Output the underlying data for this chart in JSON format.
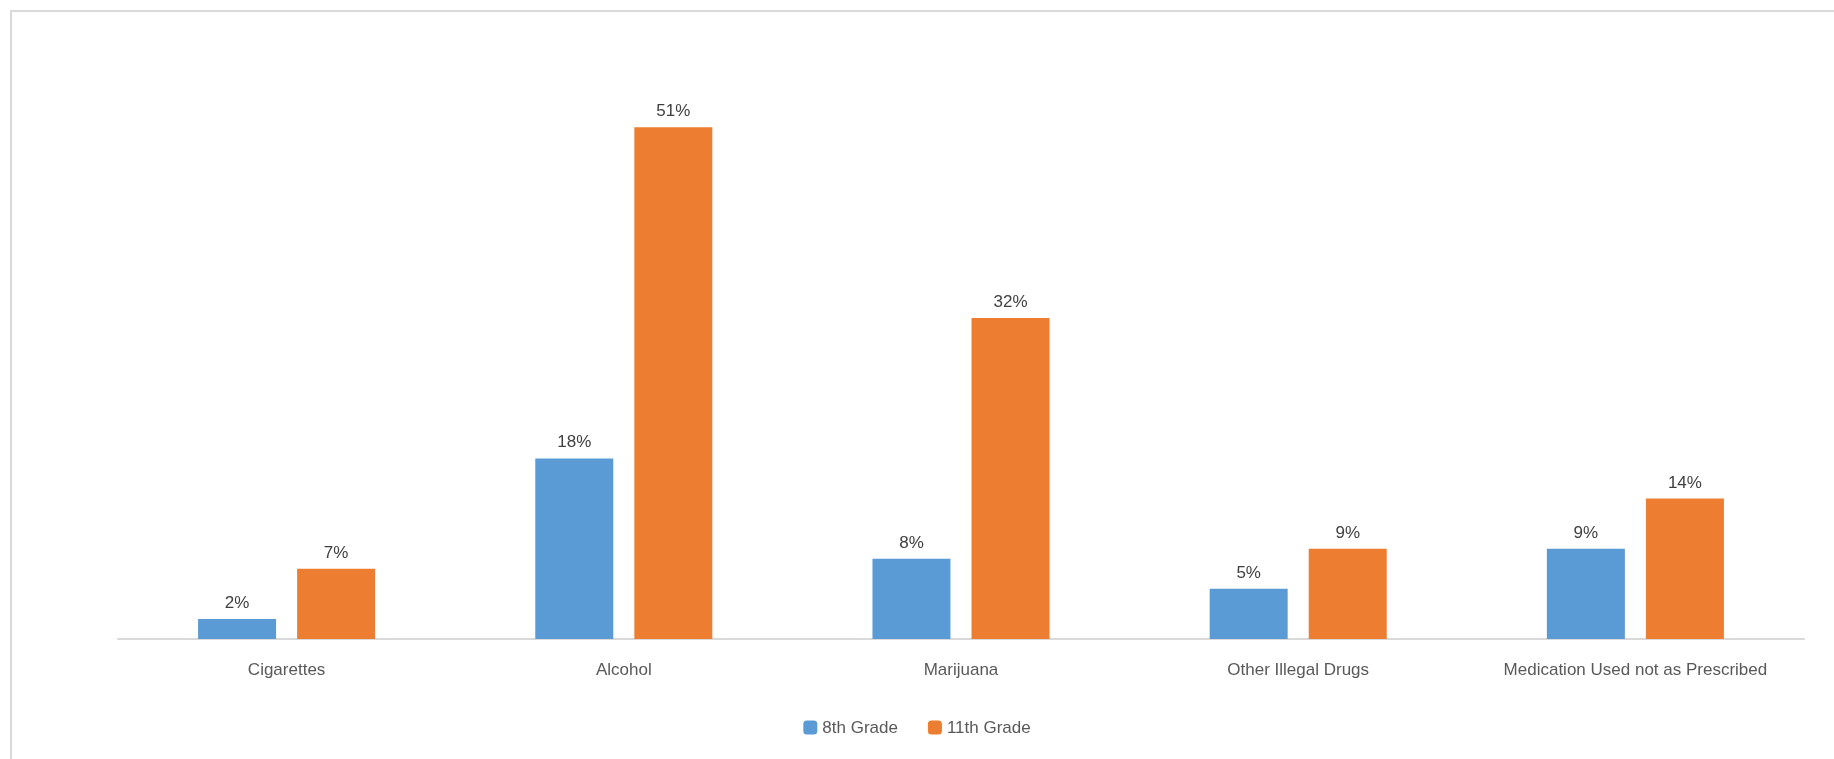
{
  "chart_data": {
    "type": "bar",
    "categories": [
      "Cigarettes",
      "Alcohol",
      "Marijuana",
      "Other Illegal Drugs",
      "Medication Used not as Prescribed"
    ],
    "series": [
      {
        "name": "8th Grade",
        "color": "#5b9bd5",
        "values": [
          2,
          18,
          8,
          5,
          9
        ],
        "value_labels": [
          "2%",
          "18%",
          "8%",
          "5%",
          "9%"
        ]
      },
      {
        "name": "11th Grade",
        "color": "#ed7d31",
        "values": [
          7,
          51,
          32,
          9,
          14
        ],
        "value_labels": [
          "7%",
          "51%",
          "32%",
          "9%",
          "14%"
        ]
      }
    ],
    "grid": false,
    "legend": "bottom"
  }
}
